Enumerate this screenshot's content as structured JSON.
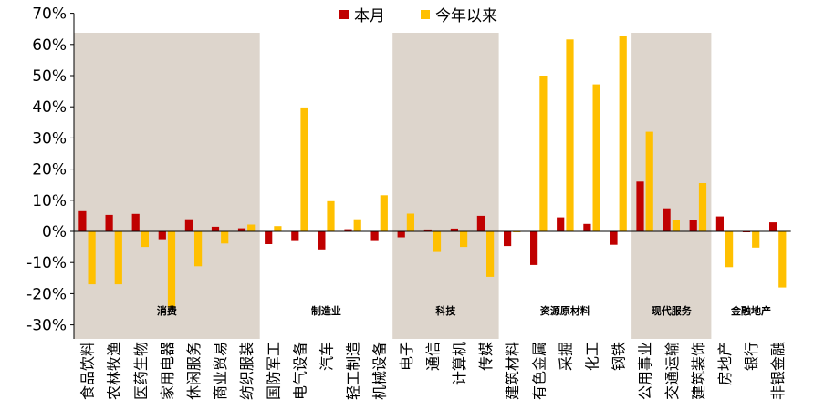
{
  "chart_data": {
    "type": "bar",
    "title": "",
    "xlabel": "",
    "ylabel": "",
    "ylim": [
      -30,
      70
    ],
    "yticks": [
      "-30%",
      "-20%",
      "-10%",
      "0%",
      "10%",
      "20%",
      "30%",
      "40%",
      "50%",
      "60%",
      "70%"
    ],
    "legend_position": "top-center",
    "categories": [
      "食品饮料",
      "农林牧渔",
      "医药生物",
      "家用电器",
      "休闲服务",
      "商业贸易",
      "纺织服装",
      "国防军工",
      "电气设备",
      "汽车",
      "轻工制造",
      "机械设备",
      "电子",
      "通信",
      "计算机",
      "传媒",
      "建筑材料",
      "有色金属",
      "采掘",
      "化工",
      "钢铁",
      "公用事业",
      "交通运输",
      "建筑装饰",
      "房地产",
      "银行",
      "非银金融"
    ],
    "series": [
      {
        "name": "本月",
        "color": "#C00000",
        "values": [
          6.5,
          5.3,
          5.6,
          -2.5,
          3.9,
          1.5,
          1.0,
          -4.1,
          -2.8,
          -5.8,
          0.7,
          -2.8,
          -1.9,
          0.6,
          0.9,
          5.0,
          -4.7,
          -10.8,
          4.5,
          2.4,
          -4.3,
          16.0,
          7.4,
          3.7,
          4.8,
          -0.3,
          2.9
        ]
      },
      {
        "name": "今年以来",
        "color": "#FFC000",
        "values": [
          -17.0,
          -17.0,
          -5.0,
          -24.5,
          -11.2,
          -3.9,
          2.2,
          1.7,
          39.8,
          9.7,
          3.9,
          11.6,
          5.7,
          -6.6,
          -5.0,
          -14.6,
          -0.3,
          50.0,
          61.6,
          47.2,
          62.8,
          32.0,
          3.7,
          15.5,
          -11.5,
          -5.2,
          -18.0
        ]
      }
    ],
    "groups": [
      {
        "label": "消费",
        "start": 0,
        "end": 6,
        "shaded": true
      },
      {
        "label": "制造业",
        "start": 7,
        "end": 11,
        "shaded": false
      },
      {
        "label": "科技",
        "start": 12,
        "end": 15,
        "shaded": true
      },
      {
        "label": "资源原材料",
        "start": 16,
        "end": 20,
        "shaded": false
      },
      {
        "label": "现代服务",
        "start": 21,
        "end": 23,
        "shaded": true
      },
      {
        "label": "金融地产",
        "start": 24,
        "end": 26,
        "shaded": false
      }
    ],
    "group_shade_color": "#DDD5CC"
  }
}
